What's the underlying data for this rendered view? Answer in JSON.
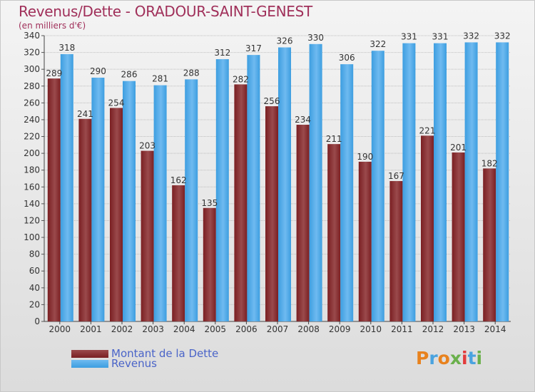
{
  "header": {
    "title": "Revenus/Dette - ORADOUR-SAINT-GENEST",
    "unit": "(en milliers d'€)"
  },
  "legend": {
    "debt_label": "Montant de la Dette",
    "revenue_label": "Revenus"
  },
  "logo": {
    "text": "Proxiti"
  },
  "colors": {
    "debt": "#7a1f22",
    "debt_light": "#9a4a4c",
    "revenue": "#3d9ee0",
    "revenue_light": "#6fbaf0",
    "title": "#a0305a",
    "legend_text": "#4a64c8"
  },
  "chart_data": {
    "type": "bar",
    "categories": [
      "2000",
      "2001",
      "2002",
      "2003",
      "2004",
      "2005",
      "2006",
      "2007",
      "2008",
      "2009",
      "2010",
      "2011",
      "2012",
      "2013",
      "2014"
    ],
    "series": [
      {
        "name": "Montant de la Dette",
        "values": [
          289,
          241,
          254,
          203,
          162,
          135,
          282,
          256,
          234,
          211,
          190,
          167,
          221,
          201,
          182
        ]
      },
      {
        "name": "Revenus",
        "values": [
          318,
          290,
          286,
          281,
          288,
          312,
          317,
          326,
          330,
          306,
          322,
          331,
          331,
          332,
          332
        ]
      }
    ],
    "yticks": [
      0,
      20,
      40,
      60,
      80,
      100,
      120,
      140,
      160,
      180,
      200,
      220,
      240,
      260,
      280,
      300,
      320,
      340
    ],
    "ylim": [
      0,
      340
    ],
    "grid": true
  }
}
